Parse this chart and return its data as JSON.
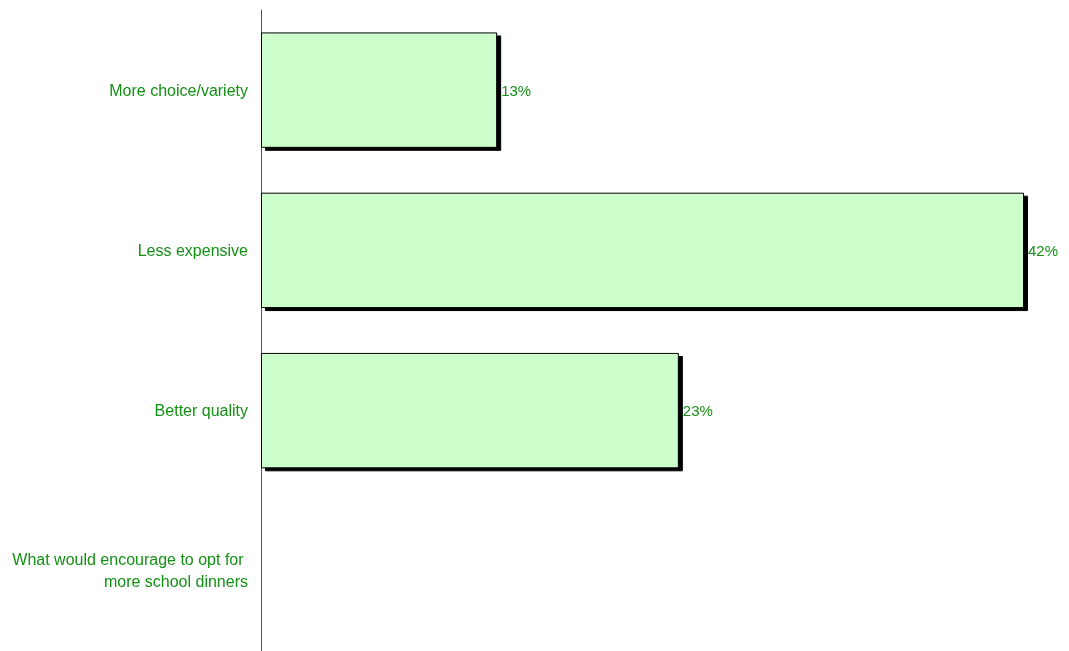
{
  "chart_data": {
    "type": "bar",
    "orientation": "horizontal",
    "categories": [
      "More choice/variety",
      "Less expensive",
      "Better quality",
      "What would encourage to opt for more school dinners"
    ],
    "values": [
      13,
      42,
      23,
      null
    ],
    "value_labels": [
      "13%",
      "42%",
      "23%",
      null
    ],
    "color": "#ccffcc"
  }
}
